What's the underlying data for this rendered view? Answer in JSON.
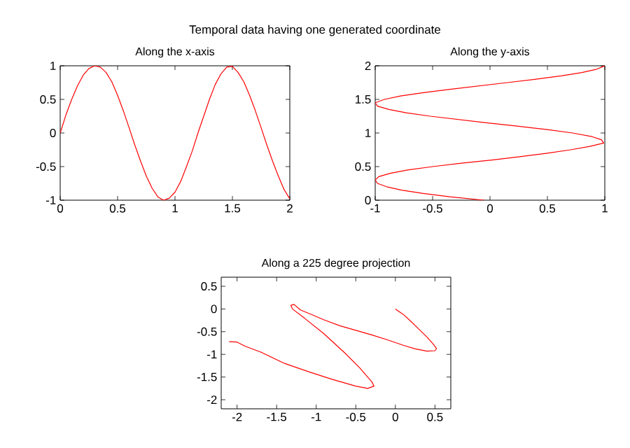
{
  "chart_data": [
    {
      "type": "line",
      "title": "Temporal data having one generated coordinate",
      "subtitle": "Along the x-axis",
      "color": "#ff0000",
      "x": [
        0,
        0.05,
        0.1,
        0.15,
        0.2,
        0.25,
        0.3,
        0.35,
        0.4,
        0.45,
        0.5,
        0.55,
        0.6,
        0.65,
        0.7,
        0.75,
        0.8,
        0.85,
        0.9,
        0.95,
        1.0,
        1.05,
        1.1,
        1.15,
        1.2,
        1.25,
        1.3,
        1.35,
        1.4,
        1.45,
        1.5,
        1.55,
        1.6,
        1.65,
        1.7,
        1.75,
        1.8,
        1.85,
        1.9,
        1.95,
        2.0
      ],
      "values": [
        0,
        0.27,
        0.5,
        0.7,
        0.86,
        0.96,
        1.0,
        0.98,
        0.9,
        0.76,
        0.56,
        0.33,
        0.08,
        -0.18,
        -0.42,
        -0.64,
        -0.82,
        -0.95,
        -1.0,
        -0.97,
        -0.88,
        -0.72,
        -0.5,
        -0.27,
        0,
        0.25,
        0.5,
        0.72,
        0.88,
        0.98,
        0.99,
        0.9,
        0.76,
        0.56,
        0.33,
        0.08,
        -0.18,
        -0.42,
        -0.64,
        -0.84,
        -0.98
      ],
      "xlim": [
        0,
        2
      ],
      "ylim": [
        -1,
        1
      ],
      "xticks": [
        0,
        0.5,
        1,
        1.5,
        2
      ],
      "yticks": [
        -1,
        -0.5,
        0,
        0.5,
        1
      ]
    },
    {
      "type": "line",
      "title": "Along the y-axis",
      "color": "#ff0000",
      "x": [
        -0.05,
        -0.35,
        -0.58,
        -0.77,
        -0.9,
        -0.98,
        -1.0,
        -0.97,
        -0.87,
        -0.72,
        -0.5,
        -0.25,
        0.03,
        0.27,
        0.5,
        0.7,
        0.87,
        0.99,
        0.97,
        0.88,
        0.72,
        0.5,
        0.25,
        -0.02,
        -0.27,
        -0.52,
        -0.73,
        -0.88,
        -0.98,
        -1.0,
        -0.92,
        -0.78,
        -0.58,
        -0.35,
        -0.1,
        0.15,
        0.4,
        0.62,
        0.8,
        0.93,
        1.0
      ],
      "values": [
        0,
        0.05,
        0.1,
        0.15,
        0.2,
        0.25,
        0.3,
        0.35,
        0.4,
        0.45,
        0.5,
        0.55,
        0.6,
        0.65,
        0.7,
        0.75,
        0.8,
        0.85,
        0.9,
        0.95,
        1.0,
        1.05,
        1.1,
        1.15,
        1.2,
        1.25,
        1.3,
        1.35,
        1.4,
        1.45,
        1.5,
        1.55,
        1.6,
        1.65,
        1.7,
        1.75,
        1.8,
        1.85,
        1.9,
        1.95,
        2.0
      ],
      "xlim": [
        -1,
        1
      ],
      "ylim": [
        0,
        2
      ],
      "xticks": [
        -1,
        -0.5,
        0,
        0.5,
        1
      ],
      "yticks": [
        0,
        0.5,
        1,
        1.5,
        2
      ]
    },
    {
      "type": "line",
      "title": "Along a 225 degree projection",
      "color": "#ff0000",
      "x": [
        0,
        0.1,
        0.2,
        0.3,
        0.4,
        0.48,
        0.52,
        0.5,
        0.4,
        0.25,
        0.1,
        -0.1,
        -0.3,
        -0.5,
        -0.7,
        -0.9,
        -1.05,
        -1.2,
        -1.28,
        -1.32,
        -1.3,
        -1.15,
        -0.9,
        -0.65,
        -0.45,
        -0.3,
        -0.27,
        -0.35,
        -0.5,
        -0.8,
        -1.1,
        -1.4,
        -1.7,
        -1.9,
        -2.0,
        -2.1
      ],
      "values": [
        0,
        -0.12,
        -0.28,
        -0.45,
        -0.62,
        -0.78,
        -0.87,
        -0.92,
        -0.93,
        -0.88,
        -0.8,
        -0.68,
        -0.57,
        -0.47,
        -0.37,
        -0.24,
        -0.13,
        -0.02,
        0.1,
        0.08,
        0,
        -0.2,
        -0.55,
        -0.95,
        -1.3,
        -1.6,
        -1.7,
        -1.75,
        -1.7,
        -1.55,
        -1.38,
        -1.2,
        -0.95,
        -0.82,
        -0.73,
        -0.72
      ],
      "xlim": [
        -2.2,
        0.7
      ],
      "ylim": [
        -2.2,
        0.7
      ],
      "xticks": [
        -2,
        -1.5,
        -1,
        -0.5,
        0,
        0.5
      ],
      "yticks": [
        -2,
        -1.5,
        -1,
        -0.5,
        0,
        0.5
      ]
    }
  ]
}
